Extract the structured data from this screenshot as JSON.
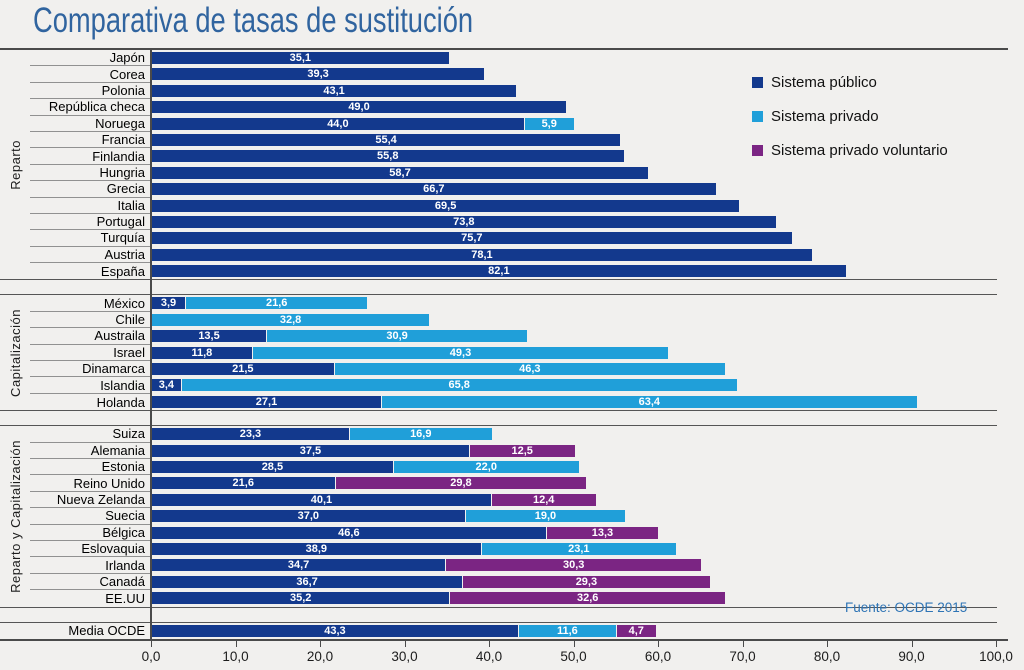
{
  "page": {
    "background": "#f1f0ee"
  },
  "title": "Comparativa de tasas de sustitución",
  "source": "Fuente: OCDE 2015",
  "legend": {
    "items": [
      {
        "label": "Sistema público",
        "color": "#13398d"
      },
      {
        "label": "Sistema privado",
        "color": "#209fd9"
      },
      {
        "label": "Sistema privado voluntario",
        "color": "#7b2583"
      }
    ]
  },
  "chart_data": {
    "type": "bar",
    "orientation": "horizontal",
    "stacked": true,
    "grid": false,
    "legend_position": "top-right",
    "xlim": [
      0,
      100
    ],
    "x_tick_labels": [
      "0,0",
      "10,0",
      "20,0",
      "30,0",
      "40,0",
      "50,0",
      "60,0",
      "70,0",
      "80,0",
      "90,0",
      "100,0"
    ],
    "series": [
      {
        "name": "Sistema público",
        "color": "#13398d"
      },
      {
        "name": "Sistema privado",
        "color": "#209fd9"
      },
      {
        "name": "Sistema privado voluntario",
        "color": "#7b2583"
      }
    ],
    "groups": [
      {
        "label": "Reparto",
        "rows": [
          {
            "country": "Japón",
            "values": [
              35.1,
              0,
              0
            ]
          },
          {
            "country": "Corea",
            "values": [
              39.3,
              0,
              0
            ]
          },
          {
            "country": "Polonia",
            "values": [
              43.1,
              0,
              0
            ]
          },
          {
            "country": "República checa",
            "values": [
              49.0,
              0,
              0
            ]
          },
          {
            "country": "Noruega",
            "values": [
              44.0,
              5.9,
              0
            ]
          },
          {
            "country": "Francia",
            "values": [
              55.4,
              0,
              0
            ]
          },
          {
            "country": "Finlandia",
            "values": [
              55.8,
              0,
              0
            ]
          },
          {
            "country": "Hungria",
            "values": [
              58.7,
              0,
              0
            ]
          },
          {
            "country": "Grecia",
            "values": [
              66.7,
              0,
              0
            ]
          },
          {
            "country": "Italia",
            "values": [
              69.5,
              0,
              0
            ]
          },
          {
            "country": "Portugal",
            "values": [
              73.8,
              0,
              0
            ]
          },
          {
            "country": "Turquía",
            "values": [
              75.7,
              0,
              0
            ]
          },
          {
            "country": "Austria",
            "values": [
              78.1,
              0,
              0
            ]
          },
          {
            "country": "España",
            "values": [
              82.1,
              0,
              0
            ]
          }
        ]
      },
      {
        "label": "Capitalización",
        "rows": [
          {
            "country": "México",
            "values": [
              3.9,
              21.6,
              0
            ]
          },
          {
            "country": "Chile",
            "values": [
              0,
              32.8,
              0
            ]
          },
          {
            "country": "Austraila",
            "values": [
              13.5,
              30.9,
              0
            ]
          },
          {
            "country": "Israel",
            "values": [
              11.8,
              49.3,
              0
            ]
          },
          {
            "country": "Dinamarca",
            "values": [
              21.5,
              46.3,
              0
            ]
          },
          {
            "country": "Islandia",
            "values": [
              3.4,
              65.8,
              0
            ]
          },
          {
            "country": "Holanda",
            "values": [
              27.1,
              63.4,
              0
            ]
          }
        ]
      },
      {
        "label": "Reparto y Capitalización",
        "rows": [
          {
            "country": "Suiza",
            "values": [
              23.3,
              16.9,
              0
            ]
          },
          {
            "country": "Alemania",
            "values": [
              37.5,
              0,
              12.5
            ]
          },
          {
            "country": "Estonia",
            "values": [
              28.5,
              22.0,
              0
            ]
          },
          {
            "country": "Reino Unido",
            "values": [
              21.6,
              0,
              29.8
            ]
          },
          {
            "country": "Nueva Zelanda",
            "values": [
              40.1,
              0,
              12.4
            ]
          },
          {
            "country": "Suecia",
            "values": [
              37.0,
              19.0,
              0
            ]
          },
          {
            "country": "Bélgica",
            "values": [
              46.6,
              0,
              13.3
            ]
          },
          {
            "country": "Eslovaquia",
            "values": [
              38.9,
              23.1,
              0
            ]
          },
          {
            "country": "Irlanda",
            "values": [
              34.7,
              0,
              30.3
            ]
          },
          {
            "country": "Canadá",
            "values": [
              36.7,
              0,
              29.3
            ]
          },
          {
            "country": "EE.UU",
            "values": [
              35.2,
              0,
              32.6
            ]
          }
        ]
      },
      {
        "label": "",
        "rows": [
          {
            "country": "Media OCDE",
            "values": [
              43.3,
              11.6,
              4.7
            ]
          }
        ]
      }
    ]
  }
}
